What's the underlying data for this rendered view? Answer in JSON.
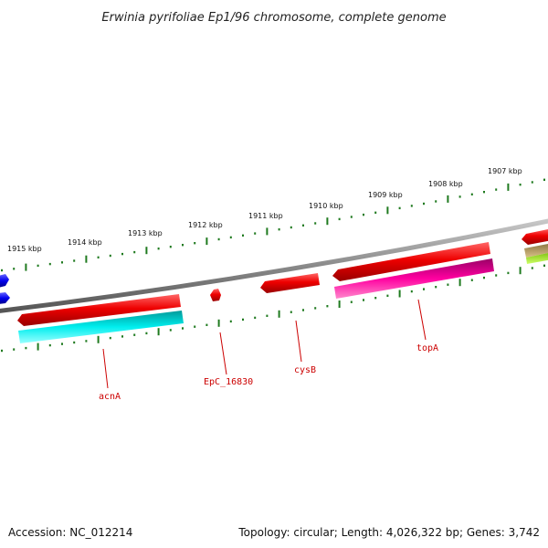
{
  "title": "Erwinia pyrifoliae Ep1/96 chromosome, complete genome",
  "footer": {
    "accession": "Accession: NC_012214",
    "summary": "Topology: circular; Length: 4,026,322 bp; Genes: 3,742"
  },
  "kbp_labels": [
    "1915 kbp",
    "1914 kbp",
    "1913 kbp",
    "1912 kbp",
    "1911 kbp",
    "1910 kbp",
    "1909 kbp",
    "1908 kbp",
    "1907 kbp"
  ],
  "gene_labels": [
    "acnA",
    "EpC_16830",
    "cysB",
    "topA"
  ],
  "colors": {
    "backbone": "#8a8a8a",
    "tick": "#1f7a1f",
    "forward_gene": "#ee0000",
    "reverse_gene": "#00eeee",
    "magenta_gene": "#ff00a0",
    "tan_gene": "#b8a060",
    "lime_gene": "#a8f020",
    "blue_gene": "#0000ff",
    "label": "#cc0000"
  }
}
